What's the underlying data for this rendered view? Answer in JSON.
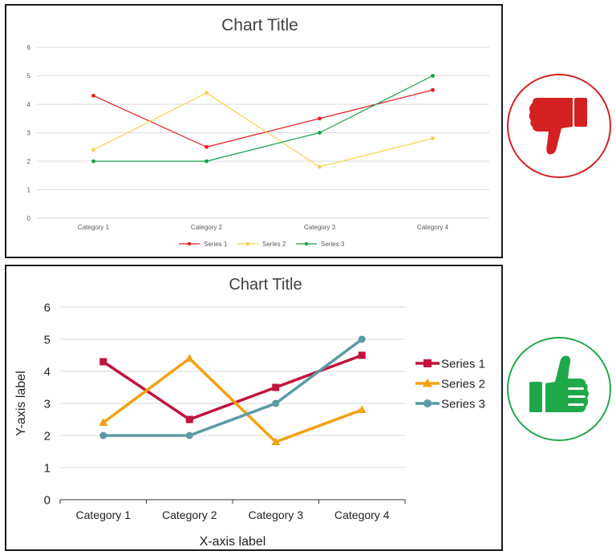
{
  "chart_data": [
    {
      "type": "line",
      "title": "Chart Title",
      "xlabel": "",
      "ylabel": "",
      "categories": [
        "Category 1",
        "Category 2",
        "Category 3",
        "Category 4"
      ],
      "ylim": [
        0,
        6
      ],
      "yticks": [
        "0",
        "1",
        "2",
        "3",
        "4",
        "5",
        "6"
      ],
      "grid": true,
      "legend": "bottom",
      "series": [
        {
          "name": "Series 1",
          "values": [
            4.3,
            2.5,
            3.5,
            4.5
          ],
          "color": "#e8191e",
          "marker": "circle"
        },
        {
          "name": "Series 2",
          "values": [
            2.4,
            4.4,
            1.8,
            2.8
          ],
          "color": "#f7d04a",
          "marker": "circle"
        },
        {
          "name": "Series 3",
          "values": [
            2.0,
            2.0,
            3.0,
            5.0
          ],
          "color": "#12a14a",
          "marker": "circle"
        }
      ]
    },
    {
      "type": "line",
      "title": "Chart Title",
      "xlabel": "X-axis label",
      "ylabel": "Y-axis label",
      "categories": [
        "Category 1",
        "Category 2",
        "Category 3",
        "Category 4"
      ],
      "ylim": [
        0,
        6
      ],
      "yticks": [
        "0",
        "1",
        "2",
        "3",
        "4",
        "5",
        "6"
      ],
      "grid": true,
      "legend": "right",
      "series": [
        {
          "name": "Series 1",
          "values": [
            4.3,
            2.5,
            3.5,
            4.5
          ],
          "color": "#c0143c",
          "marker": "square"
        },
        {
          "name": "Series 2",
          "values": [
            2.4,
            4.4,
            1.8,
            2.8
          ],
          "color": "#f5a00f",
          "marker": "triangle"
        },
        {
          "name": "Series 3",
          "values": [
            2.0,
            2.0,
            3.0,
            5.0
          ],
          "color": "#5b9aa6",
          "marker": "circle"
        }
      ]
    }
  ],
  "verdicts": {
    "top": {
      "icon": "thumbs-down-icon",
      "color": "#d42020"
    },
    "bottom": {
      "icon": "thumbs-up-icon",
      "color": "#1fa84a"
    }
  }
}
